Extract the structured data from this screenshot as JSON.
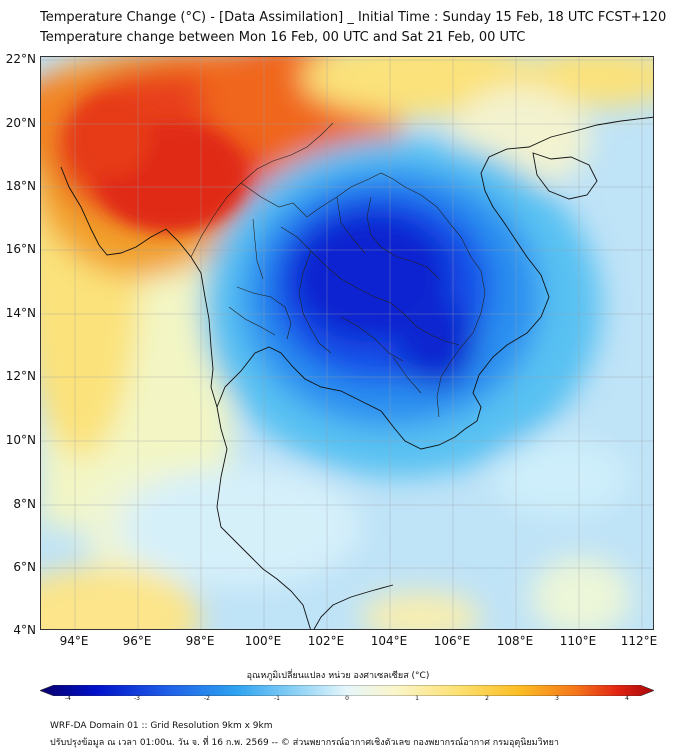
{
  "header": {
    "title_line1": "Temperature Change (°C) - [Data Assimilation] _ Initial Time : Sunday 15 Feb, 18 UTC FCST+120",
    "title_line2": "Temperature change between Mon 16 Feb, 00 UTC and Sat 21 Feb, 00 UTC"
  },
  "map": {
    "lat_labels": [
      "22°N",
      "20°N",
      "18°N",
      "16°N",
      "14°N",
      "12°N",
      "10°N",
      "8°N",
      "6°N",
      "4°N"
    ],
    "lon_labels": [
      "94°E",
      "96°E",
      "98°E",
      "100°E",
      "102°E",
      "104°E",
      "106°E",
      "108°E",
      "110°E",
      "112°E"
    ]
  },
  "colorbar": {
    "title": "อุณหภูมิเปลี่ยนแปลง หน่วย องศาเซลเซียส (°C)",
    "ticks": [
      "-4",
      "-3",
      "-2",
      "-1",
      "0",
      "1",
      "2",
      "3",
      "4"
    ],
    "colors": [
      "#08006b",
      "#0010c8",
      "#1e5ae6",
      "#2ea3f0",
      "#8fd3f5",
      "#e6f6fb",
      "#fbf5c9",
      "#fce173",
      "#fbbd24",
      "#f5781a",
      "#e22512",
      "#a8060a"
    ]
  },
  "footer": {
    "line1": "WRF-DA Domain 01 :: Grid Resolution 9km x 9km",
    "line2": "ปรับปรุงข้อมูล ณ เวลา 01:00น. วัน จ. ที่ 16 ก.พ. 2569 -- © ส่วนพยากรณ์อากาศเชิงตัวเลข กองพยากรณ์อากาศ กรมอุตุนิยมวิทยา"
  }
}
